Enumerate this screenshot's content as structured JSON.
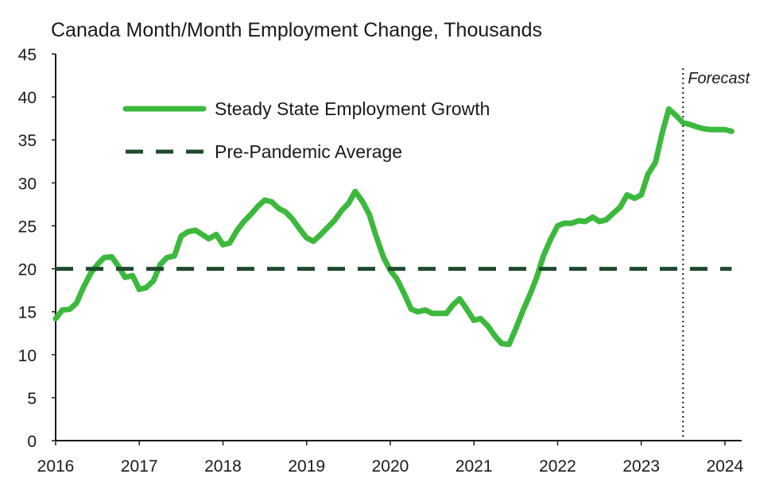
{
  "chart_data": {
    "type": "line",
    "title": "Canada Month/Month Employment Change, Thousands",
    "xlabel": "",
    "ylabel": "",
    "xlim": [
      2016.0,
      2024.2
    ],
    "ylim": [
      0,
      45
    ],
    "x_ticks": [
      2016,
      2017,
      2018,
      2019,
      2020,
      2021,
      2022,
      2023,
      2024
    ],
    "y_ticks": [
      0,
      5,
      10,
      15,
      20,
      25,
      30,
      35,
      40,
      45
    ],
    "grid": false,
    "legend": "top-left",
    "series": [
      {
        "name": "Steady State Employment Growth",
        "color": "#3cb93c",
        "style": "solid",
        "x": [
          2016.0,
          2016.08,
          2016.17,
          2016.25,
          2016.33,
          2016.42,
          2016.5,
          2016.58,
          2016.67,
          2016.75,
          2016.83,
          2016.92,
          2017.0,
          2017.08,
          2017.17,
          2017.25,
          2017.33,
          2017.42,
          2017.5,
          2017.58,
          2017.67,
          2017.75,
          2017.83,
          2017.92,
          2018.0,
          2018.08,
          2018.17,
          2018.25,
          2018.33,
          2018.42,
          2018.5,
          2018.58,
          2018.67,
          2018.75,
          2018.83,
          2018.92,
          2019.0,
          2019.08,
          2019.17,
          2019.25,
          2019.33,
          2019.42,
          2019.5,
          2019.58,
          2019.67,
          2019.75,
          2019.83,
          2019.92,
          2020.0,
          2020.08,
          2020.17,
          2020.25,
          2020.33,
          2020.42,
          2020.5,
          2020.58,
          2020.67,
          2020.75,
          2020.83,
          2020.92,
          2021.0,
          2021.08,
          2021.17,
          2021.25,
          2021.33,
          2021.42,
          2021.5,
          2021.58,
          2021.67,
          2021.75,
          2021.83,
          2021.92,
          2022.0,
          2022.08,
          2022.17,
          2022.25,
          2022.33,
          2022.42,
          2022.5,
          2022.58,
          2022.67,
          2022.75,
          2022.83,
          2022.92,
          2023.0,
          2023.08,
          2023.17,
          2023.25,
          2023.33,
          2023.42,
          2023.5,
          2023.58,
          2023.67,
          2023.75,
          2023.83,
          2023.92,
          2024.0,
          2024.08
        ],
        "values": [
          14.2,
          15.2,
          15.3,
          16.0,
          17.8,
          19.5,
          20.5,
          21.3,
          21.4,
          20.3,
          19.0,
          19.2,
          17.6,
          17.8,
          18.6,
          20.5,
          21.3,
          21.5,
          23.8,
          24.3,
          24.5,
          24.0,
          23.5,
          24.0,
          22.8,
          23.0,
          24.5,
          25.5,
          26.3,
          27.3,
          28.0,
          27.8,
          27.0,
          26.6,
          25.8,
          24.6,
          23.6,
          23.2,
          24.0,
          24.8,
          25.6,
          26.8,
          27.6,
          29.0,
          27.8,
          26.3,
          23.8,
          21.3,
          19.8,
          18.8,
          17.0,
          15.3,
          15.0,
          15.2,
          14.8,
          14.8,
          14.8,
          15.8,
          16.5,
          15.2,
          14.0,
          14.2,
          13.3,
          12.2,
          11.3,
          11.2,
          13.0,
          15.0,
          17.0,
          19.0,
          21.5,
          23.5,
          25.0,
          25.3,
          25.3,
          25.6,
          25.5,
          26.0,
          25.5,
          25.7,
          26.5,
          27.2,
          28.6,
          28.2,
          28.6,
          31.0,
          32.4,
          35.8,
          38.6,
          37.8,
          37.0,
          36.8,
          36.5,
          36.3,
          36.2,
          36.2,
          36.2,
          36.0
        ]
      },
      {
        "name": "Pre-Pandemic Average",
        "color": "#1f4a2e",
        "style": "dashed",
        "x": [
          2016.0,
          2024.08
        ],
        "values": [
          20,
          20
        ]
      }
    ],
    "annotations": [
      {
        "text": "Forecast",
        "x": 2023.5,
        "style": "dotted-vertical-line"
      }
    ]
  }
}
